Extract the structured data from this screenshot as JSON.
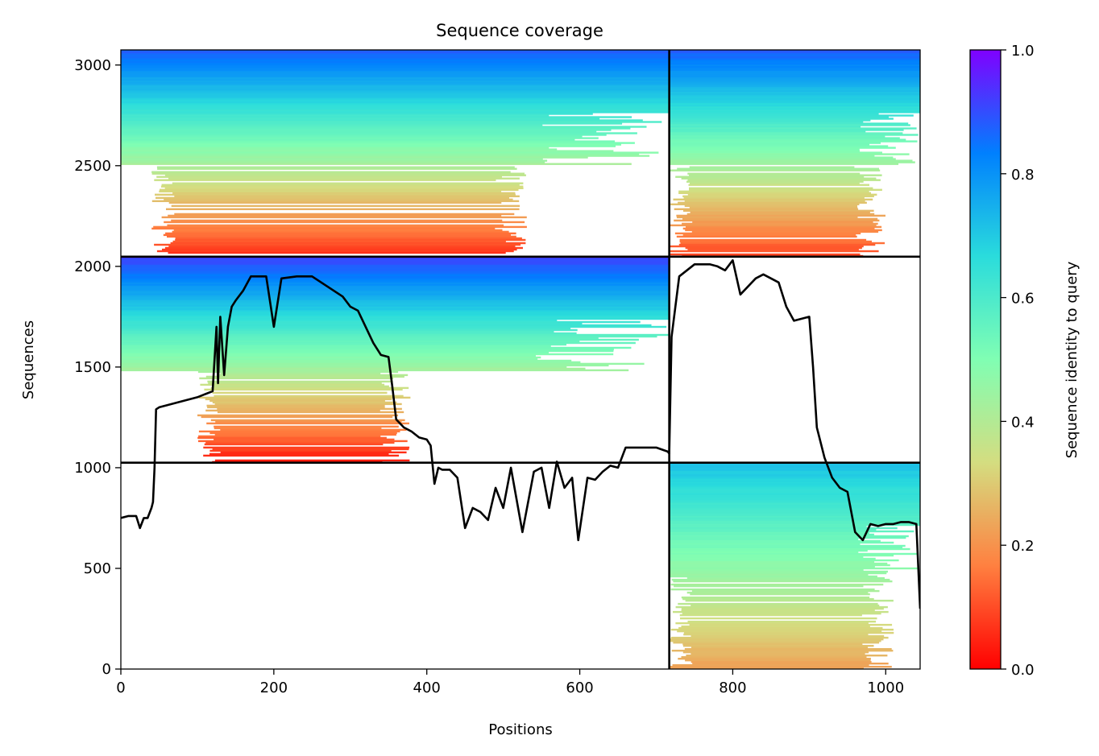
{
  "chart_data": {
    "type": "heatmap",
    "title": "Sequence coverage",
    "xlabel": "Positions",
    "ylabel": "Sequences",
    "xlim": [
      0,
      1045
    ],
    "ylim": [
      0,
      3075
    ],
    "xticks": [
      0,
      200,
      400,
      600,
      800,
      1000
    ],
    "yticks": [
      0,
      500,
      1000,
      1500,
      2000,
      2500,
      3000
    ],
    "colorbar": {
      "label": "Sequence identity to query",
      "range": [
        0,
        1
      ],
      "ticks": [
        0.0,
        0.2,
        0.4,
        0.6,
        0.8,
        1.0
      ],
      "tick_labels": [
        "0.0",
        "0.2",
        "0.4",
        "0.6",
        "0.8",
        "1.0"
      ],
      "colormap": "rainbow_r",
      "colors": [
        "#ff0000",
        "#ff8040",
        "#d4dd80",
        "#80feb3",
        "#2adcdc",
        "#0080fe",
        "#8000ff"
      ]
    },
    "chain_boundaries": {
      "x": [
        717
      ],
      "y": [
        1025,
        2048
      ]
    },
    "blocks": [
      {
        "name": "block-a-a",
        "x": [
          0,
          717
        ],
        "y": [
          2048,
          3075
        ],
        "identity_top": 0.88,
        "identity_bottom": 0.05,
        "filled_x": [
          0,
          717
        ],
        "sparse_low_identity_x": [
          40,
          510
        ]
      },
      {
        "name": "block-a-b",
        "x": [
          717,
          1045
        ],
        "y": [
          2048,
          3075
        ],
        "identity_top": 0.88,
        "identity_bottom": 0.08,
        "filled_x": [
          717,
          1045
        ],
        "sparse_low_identity_x": [
          717,
          980
        ]
      },
      {
        "name": "block-b-a",
        "x": [
          0,
          717
        ],
        "y": [
          1025,
          2048
        ],
        "identity_top": 0.92,
        "identity_bottom": 0.02,
        "filled_x": [
          0,
          717
        ],
        "sparse_low_identity_x": [
          100,
          360
        ]
      },
      {
        "name": "block-c-b",
        "x": [
          717,
          1045
        ],
        "y": [
          0,
          1025
        ],
        "identity_top": 0.72,
        "identity_bottom": 0.22,
        "filled_x": [
          717,
          1045
        ],
        "sparse_low_identity_x": [
          717,
          990
        ]
      }
    ],
    "coverage_line": {
      "name": "coverage",
      "x": [
        0,
        10,
        20,
        25,
        30,
        35,
        40,
        42,
        44,
        46,
        50,
        60,
        80,
        100,
        120,
        125,
        127,
        130,
        135,
        140,
        145,
        150,
        160,
        170,
        190,
        200,
        210,
        230,
        250,
        270,
        290,
        300,
        310,
        320,
        330,
        340,
        350,
        355,
        360,
        370,
        380,
        390,
        400,
        405,
        410,
        415,
        420,
        430,
        440,
        450,
        460,
        470,
        480,
        490,
        500,
        510,
        525,
        540,
        550,
        560,
        570,
        580,
        590,
        598,
        610,
        620,
        630,
        640,
        650,
        660,
        680,
        700,
        715,
        717,
        720,
        730,
        750,
        770,
        780,
        790,
        800,
        810,
        820,
        830,
        840,
        850,
        860,
        870,
        880,
        890,
        900,
        905,
        910,
        920,
        930,
        940,
        950,
        960,
        970,
        980,
        990,
        1000,
        1010,
        1020,
        1030,
        1040,
        1045
      ],
      "y": [
        750,
        760,
        760,
        700,
        750,
        750,
        800,
        830,
        1000,
        1290,
        1300,
        1310,
        1330,
        1350,
        1380,
        1700,
        1420,
        1750,
        1460,
        1700,
        1800,
        1830,
        1880,
        1950,
        1950,
        1700,
        1940,
        1950,
        1950,
        1900,
        1850,
        1800,
        1780,
        1700,
        1620,
        1560,
        1550,
        1400,
        1240,
        1200,
        1180,
        1150,
        1140,
        1110,
        920,
        1000,
        990,
        990,
        950,
        700,
        800,
        780,
        740,
        900,
        800,
        1000,
        680,
        980,
        1000,
        800,
        1030,
        900,
        950,
        640,
        950,
        940,
        980,
        1010,
        1000,
        1100,
        1100,
        1100,
        1080,
        1070,
        1650,
        1950,
        2010,
        2010,
        2000,
        1980,
        2030,
        1860,
        1900,
        1940,
        1960,
        1940,
        1920,
        1800,
        1730,
        1740,
        1750,
        1500,
        1200,
        1050,
        950,
        900,
        880,
        680,
        640,
        720,
        710,
        720,
        720,
        730,
        730,
        720,
        300
      ]
    }
  }
}
